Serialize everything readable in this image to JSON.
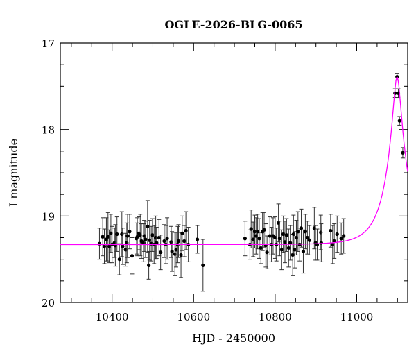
{
  "chart_data": {
    "type": "scatter",
    "title": "OGLE-2026-BLG-0065",
    "xlabel": "HJD - 2450000",
    "ylabel": "I magnitude",
    "xlim": [
      10273,
      11125
    ],
    "ylim": [
      20,
      17
    ],
    "y_inverted": true,
    "grid": false,
    "x_ticks": [
      10400,
      10600,
      10800,
      11000
    ],
    "y_ticks": [
      17,
      18,
      19,
      20
    ],
    "point_color": "#000000",
    "model_color": "#ff00ff",
    "model": {
      "type": "point-lens",
      "t0": 11099,
      "tE": 55,
      "u0": 0.17,
      "I_base": 19.33
    },
    "points": [
      [
        10369,
        19.32,
        0.18
      ],
      [
        10377,
        19.24,
        0.22
      ],
      [
        10381,
        19.35,
        0.2
      ],
      [
        10386,
        19.27,
        0.25
      ],
      [
        10390,
        19.24,
        0.28
      ],
      [
        10393,
        19.35,
        0.19
      ],
      [
        10397,
        19.2,
        0.22
      ],
      [
        10400,
        19.33,
        0.21
      ],
      [
        10406,
        19.31,
        0.17
      ],
      [
        10408,
        19.34,
        0.24
      ],
      [
        10412,
        19.21,
        0.2
      ],
      [
        10418,
        19.5,
        0.18
      ],
      [
        10424,
        19.21,
        0.26
      ],
      [
        10426,
        19.35,
        0.21
      ],
      [
        10433,
        19.39,
        0.19
      ],
      [
        10436,
        19.31,
        0.23
      ],
      [
        10438,
        19.23,
        0.25
      ],
      [
        10443,
        19.18,
        0.2
      ],
      [
        10449,
        19.46,
        0.21
      ],
      [
        10460,
        19.26,
        0.18
      ],
      [
        10462,
        19.24,
        0.22
      ],
      [
        10466,
        19.2,
        0.19
      ],
      [
        10469,
        19.22,
        0.24
      ],
      [
        10472,
        19.29,
        0.2
      ],
      [
        10477,
        19.31,
        0.22
      ],
      [
        10479,
        19.23,
        0.18
      ],
      [
        10482,
        19.27,
        0.21
      ],
      [
        10487,
        19.12,
        0.3
      ],
      [
        10490,
        19.57,
        0.16
      ],
      [
        10492,
        19.28,
        0.23
      ],
      [
        10496,
        19.32,
        0.2
      ],
      [
        10499,
        19.22,
        0.19
      ],
      [
        10503,
        19.33,
        0.22
      ],
      [
        10507,
        19.25,
        0.25
      ],
      [
        10509,
        19.31,
        0.18
      ],
      [
        10515,
        19.25,
        0.21
      ],
      [
        10519,
        19.42,
        0.2
      ],
      [
        10528,
        19.29,
        0.19
      ],
      [
        10532,
        19.33,
        0.22
      ],
      [
        10535,
        19.26,
        0.24
      ],
      [
        10545,
        19.3,
        0.18
      ],
      [
        10547,
        19.41,
        0.23
      ],
      [
        10554,
        19.44,
        0.25
      ],
      [
        10557,
        19.39,
        0.2
      ],
      [
        10561,
        19.33,
        0.21
      ],
      [
        10563,
        19.29,
        0.19
      ],
      [
        10569,
        19.45,
        0.26
      ],
      [
        10572,
        19.2,
        0.2
      ],
      [
        10577,
        19.29,
        0.18
      ],
      [
        10581,
        19.17,
        0.22
      ],
      [
        10587,
        19.33,
        0.2
      ],
      [
        10609,
        19.27,
        0.16
      ],
      [
        10623,
        19.57,
        0.3
      ],
      [
        10726,
        19.26,
        0.2
      ],
      [
        10738,
        19.33,
        0.17
      ],
      [
        10741,
        19.15,
        0.22
      ],
      [
        10746,
        19.27,
        0.2
      ],
      [
        10750,
        19.18,
        0.19
      ],
      [
        10753,
        19.23,
        0.21
      ],
      [
        10757,
        19.18,
        0.2
      ],
      [
        10761,
        19.26,
        0.23
      ],
      [
        10765,
        19.37,
        0.18
      ],
      [
        10769,
        19.18,
        0.22
      ],
      [
        10773,
        19.16,
        0.2
      ],
      [
        10777,
        19.34,
        0.25
      ],
      [
        10780,
        19.42,
        0.19
      ],
      [
        10787,
        19.23,
        0.22
      ],
      [
        10791,
        19.33,
        0.2
      ],
      [
        10795,
        19.23,
        0.21
      ],
      [
        10800,
        19.25,
        0.24
      ],
      [
        10803,
        19.33,
        0.19
      ],
      [
        10808,
        19.08,
        0.22
      ],
      [
        10811,
        19.26,
        0.2
      ],
      [
        10816,
        19.39,
        0.23
      ],
      [
        10820,
        19.21,
        0.21
      ],
      [
        10824,
        19.3,
        0.24
      ],
      [
        10828,
        19.22,
        0.19
      ],
      [
        10833,
        19.37,
        0.22
      ],
      [
        10837,
        19.31,
        0.2
      ],
      [
        10843,
        19.45,
        0.24
      ],
      [
        10845,
        19.21,
        0.22
      ],
      [
        10848,
        19.39,
        0.21
      ],
      [
        10852,
        19.25,
        0.2
      ],
      [
        10856,
        19.18,
        0.23
      ],
      [
        10860,
        19.33,
        0.19
      ],
      [
        10864,
        19.14,
        0.22
      ],
      [
        10869,
        19.41,
        0.25
      ],
      [
        10874,
        19.18,
        0.2
      ],
      [
        10879,
        19.25,
        0.19
      ],
      [
        10884,
        19.28,
        0.17
      ],
      [
        10896,
        19.14,
        0.24
      ],
      [
        10899,
        19.31,
        0.2
      ],
      [
        10903,
        19.33,
        0.18
      ],
      [
        10912,
        19.19,
        0.2
      ],
      [
        10913,
        19.31,
        0.22
      ],
      [
        10936,
        19.17,
        0.19
      ],
      [
        10941,
        19.33,
        0.22
      ],
      [
        10945,
        19.29,
        0.2
      ],
      [
        10952,
        19.21,
        0.21
      ],
      [
        10962,
        19.26,
        0.18
      ],
      [
        10968,
        19.23,
        0.2
      ],
      [
        11094,
        17.58,
        0.05
      ],
      [
        11099,
        17.39,
        0.04
      ],
      [
        11102,
        17.58,
        0.05
      ],
      [
        11105,
        17.9,
        0.05
      ],
      [
        11113,
        18.27,
        0.06
      ]
    ]
  }
}
